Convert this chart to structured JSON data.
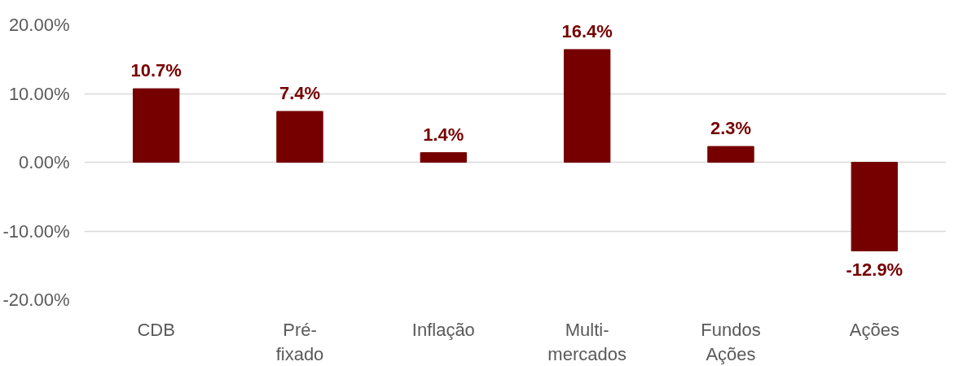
{
  "chart_data": {
    "type": "bar",
    "categories": [
      "CDB",
      "Pré-\nfixado",
      "Inflação",
      "Multi-\nmercados",
      "Fundos\nAções",
      "Ações"
    ],
    "series": [
      {
        "color": "#760000",
        "values": [
          10.7,
          7.4,
          1.4,
          16.4,
          2.3,
          -12.9
        ],
        "value_labels": [
          "10.7%",
          "7.4%",
          "1.4%",
          "16.4%",
          "2.3%",
          "-12.9%"
        ]
      }
    ],
    "ylim": [
      -20,
      20
    ],
    "yticks": [
      {
        "value": -20,
        "label": "-20.00%"
      },
      {
        "value": -10,
        "label": "-10.00%"
      },
      {
        "value": 0,
        "label": "0.00%"
      },
      {
        "value": 10,
        "label": "10.00%"
      },
      {
        "value": 20,
        "label": "20.00%"
      }
    ],
    "grid": "y"
  }
}
